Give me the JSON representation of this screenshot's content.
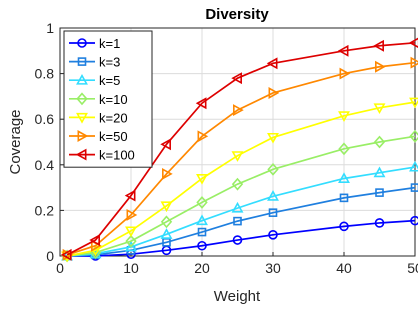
{
  "chart_data": {
    "type": "line",
    "title": "Diversity",
    "xlabel": "Weight",
    "ylabel": "Coverage",
    "xlim": [
      0,
      50
    ],
    "ylim": [
      0,
      1
    ],
    "xticks": [
      "0",
      "10",
      "20",
      "30",
      "40",
      "50"
    ],
    "yticks": [
      "0",
      "0.2",
      "0.4",
      "0.6",
      "0.8",
      "1"
    ],
    "grid": true,
    "legend_position": "top-left",
    "x": [
      1,
      5,
      10,
      15,
      20,
      25,
      30,
      40,
      45,
      50
    ],
    "series": [
      {
        "name": "k=1",
        "color": "#0000ff",
        "marker": "circle",
        "values": [
          0.0,
          0.0,
          0.008,
          0.025,
          0.045,
          0.07,
          0.093,
          0.13,
          0.145,
          0.155
        ]
      },
      {
        "name": "k=3",
        "color": "#1f7fdf",
        "marker": "square",
        "values": [
          0.0,
          0.005,
          0.025,
          0.06,
          0.105,
          0.153,
          0.19,
          0.255,
          0.278,
          0.3
        ]
      },
      {
        "name": "k=5",
        "color": "#33ddff",
        "marker": "triangle-up",
        "values": [
          0.0,
          0.01,
          0.04,
          0.095,
          0.155,
          0.21,
          0.262,
          0.34,
          0.365,
          0.39
        ]
      },
      {
        "name": "k=10",
        "color": "#99ee66",
        "marker": "diamond",
        "values": [
          0.0,
          0.015,
          0.065,
          0.15,
          0.235,
          0.315,
          0.38,
          0.47,
          0.5,
          0.525
        ]
      },
      {
        "name": "k=20",
        "color": "#ffff00",
        "marker": "triangle-down",
        "values": [
          0.0,
          0.025,
          0.11,
          0.22,
          0.34,
          0.44,
          0.52,
          0.615,
          0.65,
          0.675
        ]
      },
      {
        "name": "k=50",
        "color": "#ff8800",
        "marker": "triangle-right",
        "values": [
          0.005,
          0.045,
          0.18,
          0.36,
          0.525,
          0.64,
          0.715,
          0.8,
          0.83,
          0.848
        ]
      },
      {
        "name": "k=100",
        "color": "#dd0000",
        "marker": "triangle-left",
        "values": [
          0.005,
          0.07,
          0.265,
          0.49,
          0.67,
          0.78,
          0.845,
          0.9,
          0.922,
          0.935
        ]
      }
    ]
  }
}
